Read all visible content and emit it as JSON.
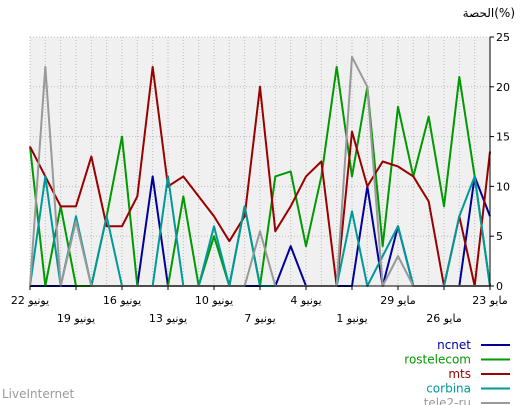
{
  "chart_data": {
    "type": "line",
    "ylabel": "الحصة(%)",
    "ylim": [
      0,
      25
    ],
    "yticks": [
      0,
      5,
      10,
      15,
      20,
      25
    ],
    "grid": true,
    "x_axis_reversed": true,
    "x": [
      "23 مايو",
      "24 مايو",
      "25 مايو",
      "26 مايو",
      "27 مايو",
      "28 مايو",
      "29 مايو",
      "30 مايو",
      "31 مايو",
      "1 يونيو",
      "2 يونيو",
      "3 يونيو",
      "4 يونيو",
      "5 يونيو",
      "6 يونيو",
      "7 يونيو",
      "8 يونيو",
      "9 يونيو",
      "10 يونيو",
      "11 يونيو",
      "12 يونيو",
      "13 يونيو",
      "14 يونيو",
      "15 يونيو",
      "16 يونيو",
      "17 يونيو",
      "18 يونيو",
      "19 يونيو",
      "20 يونيو",
      "21 يونيو",
      "22 يونيو"
    ],
    "xtick_labels_row1": [
      {
        "index": 0,
        "label": "23 مايو"
      },
      {
        "index": 6,
        "label": "29 مايو"
      },
      {
        "index": 12,
        "label": "4 يونيو"
      },
      {
        "index": 18,
        "label": "10 يونيو"
      },
      {
        "index": 24,
        "label": "16 يونيو"
      },
      {
        "index": 30,
        "label": "22 يونيو"
      }
    ],
    "xtick_labels_row2": [
      {
        "index": 3,
        "label": "26 مايو"
      },
      {
        "index": 9,
        "label": "1 يونيو"
      },
      {
        "index": 15,
        "label": "7 يونيو"
      },
      {
        "index": 21,
        "label": "13 يونيو"
      },
      {
        "index": 27,
        "label": "19 يونيو"
      }
    ],
    "series": [
      {
        "name": "ncnet",
        "color": "#000099",
        "values": [
          7,
          11,
          0,
          0,
          0,
          0,
          6,
          0,
          10,
          0,
          0,
          0,
          0,
          4,
          0,
          0,
          0,
          0,
          0,
          0,
          0,
          0,
          11,
          0,
          0,
          0,
          0,
          0,
          0,
          0,
          0
        ]
      },
      {
        "name": "rostelecom",
        "color": "#009900",
        "values": [
          0,
          11,
          21,
          8,
          17,
          11,
          18,
          4,
          20,
          11,
          22,
          11,
          4,
          11.5,
          11,
          0,
          8,
          0,
          5,
          0,
          9,
          0,
          0,
          0,
          15,
          7,
          0,
          0,
          8,
          0,
          14
        ]
      },
      {
        "name": "mts",
        "color": "#990000",
        "values": [
          13.5,
          0,
          7,
          0,
          8.5,
          11,
          12,
          12.5,
          10,
          15.5,
          0,
          12.5,
          11,
          8,
          5.5,
          20,
          7,
          4.5,
          7,
          9,
          11,
          10,
          22,
          9,
          6,
          6,
          13,
          8,
          8,
          11,
          14
        ]
      },
      {
        "name": "corbina",
        "color": "#009999",
        "values": [
          0,
          11,
          7,
          0,
          0,
          0,
          6,
          3,
          0,
          7.5,
          0,
          0,
          0,
          0,
          0,
          0,
          8,
          0,
          6,
          0,
          0,
          11,
          0,
          0,
          0,
          7,
          0,
          7,
          0,
          11,
          0
        ]
      },
      {
        "name": "tele2-ru",
        "color": "#999999",
        "values": [
          0,
          0,
          0,
          0,
          0,
          0,
          3,
          0,
          20,
          23,
          0,
          0,
          0,
          0,
          0,
          5.5,
          0,
          0,
          0,
          0,
          0,
          0,
          0,
          0,
          0,
          0,
          0,
          6.5,
          0,
          22,
          0
        ]
      }
    ]
  },
  "footer": {
    "brand": "LiveInternet"
  }
}
